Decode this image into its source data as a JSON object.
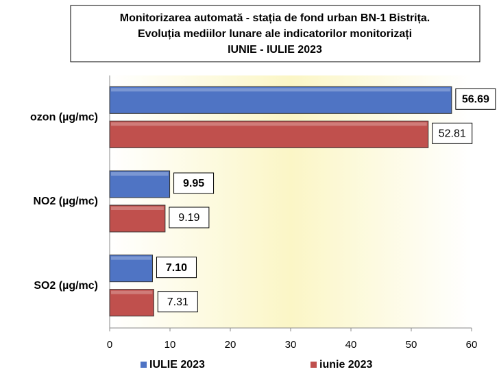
{
  "chart_data": {
    "type": "hbar",
    "title": [
      "Monitorizarea automată  - stația de fond urban BN-1 Bistrița.",
      "Evoluția mediilor lunare ale indicatorilor monitorizați",
      "IUNIE - IULIE 2023"
    ],
    "categories": [
      "ozon (µg/mc)",
      "NO2 (µg/mc)",
      "SO2 (µg/mc)"
    ],
    "series": [
      {
        "name": "IULIE 2023",
        "color": "#4f74c4",
        "values": [
          56.69,
          9.95,
          7.1
        ],
        "value_labels": [
          "56.69",
          "9.95",
          "7.10"
        ]
      },
      {
        "name": "iunie 2023",
        "color": "#c0504d",
        "values": [
          52.81,
          9.19,
          7.31
        ],
        "value_labels": [
          "52.81",
          "9.19",
          "7.31"
        ]
      }
    ],
    "xlim": [
      0,
      60
    ],
    "xticks": [
      0,
      10,
      20,
      30,
      40,
      50,
      60
    ],
    "legend": "bottom"
  }
}
